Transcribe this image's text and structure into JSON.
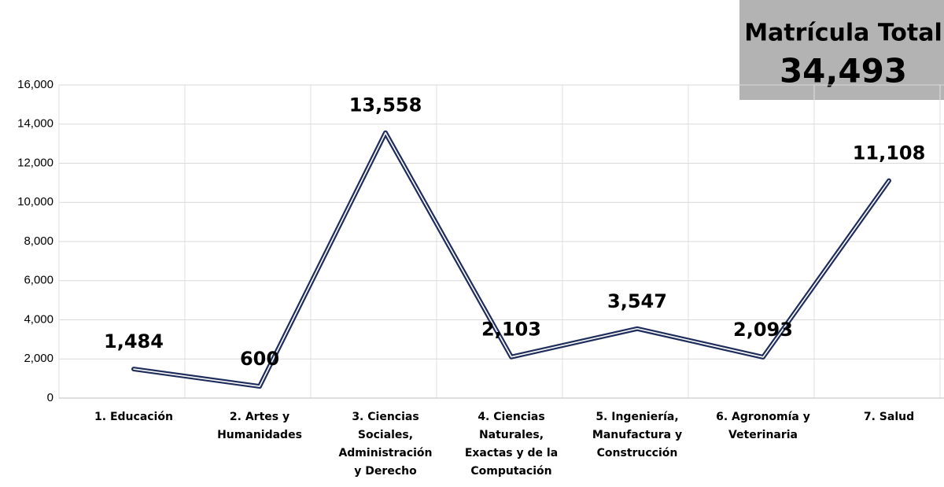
{
  "chart_data": {
    "type": "line",
    "categories": [
      "1. Educación",
      "2. Artes y\nHumanidades",
      "3. Ciencias\nSociales,\nAdministración\ny Derecho",
      "4. Ciencias\nNaturales,\nExactas y de la\nComputación",
      "5. Ingeniería,\nManufactura y\nConstrucción",
      "6. Agronomía y\nVeterinaria",
      "7. Salud"
    ],
    "values": [
      1484,
      600,
      13558,
      2103,
      3547,
      2093,
      11108
    ],
    "value_labels": [
      "1,484",
      "600",
      "13,558",
      "2,103",
      "3,547",
      "2,093",
      "11,108"
    ],
    "color": "#1f2d5c",
    "ylim": [
      0,
      16000
    ],
    "yticks": [
      0,
      {
        "value": 2000,
        "label": "2,000"
      },
      {
        "value": 4000,
        "label": "4,000"
      },
      {
        "value": 6000,
        "label": "6,000"
      },
      {
        "value": 8000,
        "label": "8,000"
      },
      {
        "value": 10000,
        "label": "10,000"
      },
      {
        "value": 12000,
        "label": "12,000"
      },
      {
        "value": 14000,
        "label": "14,000"
      },
      {
        "value": 16000,
        "label": "16,000"
      }
    ],
    "grid": true,
    "annotations": [
      "Matrícula Total",
      "34,493"
    ]
  }
}
